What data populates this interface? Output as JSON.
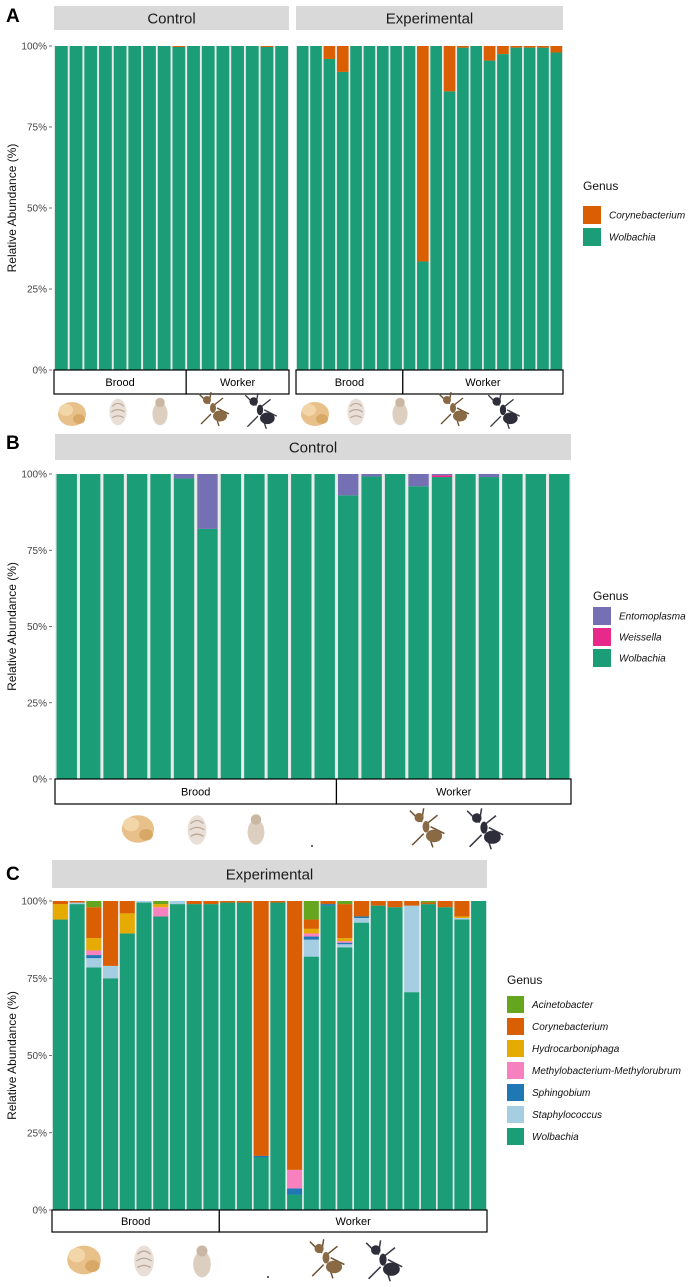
{
  "colors": {
    "Corynebacterium": "#D95F02",
    "Wolbachia": "#1B9E77",
    "Entomoplasma": "#7570B3",
    "Weissella": "#E7298A",
    "Acinetobacter": "#66A61E",
    "Hydrocarboniphaga": "#E6AB02",
    "Methylobacterium-Methylorubrum": "#F781BF",
    "Sphingobium": "#1F78B4",
    "Staphylococcus": "#A6CEE3"
  },
  "legend_title": "Genus",
  "chart_data": [
    {
      "panel": "A",
      "type": "bar",
      "stacked": true,
      "ylabel": "Relative Abundance (%)",
      "yticks": [
        "0%",
        "25%",
        "50%",
        "75%",
        "100%"
      ],
      "ylim": [
        0,
        100
      ],
      "legend": [
        "Corynebacterium",
        "Wolbachia"
      ],
      "facets": [
        {
          "title": "Control",
          "groups": [
            {
              "label": "Brood",
              "count": 9
            },
            {
              "label": "Worker",
              "count": 7
            }
          ],
          "bars": [
            {
              "Wolbachia": 100
            },
            {
              "Wolbachia": 100
            },
            {
              "Wolbachia": 100
            },
            {
              "Wolbachia": 100
            },
            {
              "Wolbachia": 100
            },
            {
              "Wolbachia": 100
            },
            {
              "Wolbachia": 100
            },
            {
              "Wolbachia": 100
            },
            {
              "Corynebacterium": 0.3,
              "Wolbachia": 99.7
            },
            {
              "Wolbachia": 100
            },
            {
              "Wolbachia": 100
            },
            {
              "Wolbachia": 100
            },
            {
              "Wolbachia": 100
            },
            {
              "Wolbachia": 100
            },
            {
              "Corynebacterium": 0.3,
              "Wolbachia": 99.7
            },
            {
              "Wolbachia": 100
            }
          ]
        },
        {
          "title": "Experimental",
          "groups": [
            {
              "label": "Brood",
              "count": 8
            },
            {
              "label": "Worker",
              "count": 12
            }
          ],
          "bars": [
            {
              "Wolbachia": 100
            },
            {
              "Wolbachia": 100
            },
            {
              "Corynebacterium": 4,
              "Wolbachia": 96
            },
            {
              "Corynebacterium": 8,
              "Wolbachia": 92
            },
            {
              "Wolbachia": 100
            },
            {
              "Wolbachia": 100
            },
            {
              "Wolbachia": 100
            },
            {
              "Wolbachia": 100
            },
            {
              "Wolbachia": 100
            },
            {
              "Corynebacterium": 66.5,
              "Wolbachia": 33.5
            },
            {
              "Wolbachia": 100
            },
            {
              "Corynebacterium": 14,
              "Wolbachia": 86
            },
            {
              "Corynebacterium": 0.5,
              "Wolbachia": 99.5
            },
            {
              "Wolbachia": 100
            },
            {
              "Corynebacterium": 4.5,
              "Wolbachia": 95.5
            },
            {
              "Corynebacterium": 2.5,
              "Wolbachia": 97.5
            },
            {
              "Corynebacterium": 0.5,
              "Wolbachia": 99.5
            },
            {
              "Corynebacterium": 0.5,
              "Wolbachia": 99.5
            },
            {
              "Corynebacterium": 0.5,
              "Wolbachia": 99.5
            },
            {
              "Corynebacterium": 2,
              "Wolbachia": 98
            }
          ]
        }
      ]
    },
    {
      "panel": "B",
      "type": "bar",
      "stacked": true,
      "ylabel": "Relative Abundance (%)",
      "yticks": [
        "0%",
        "25%",
        "50%",
        "75%",
        "100%"
      ],
      "ylim": [
        0,
        100
      ],
      "legend": [
        "Entomoplasma",
        "Weissella",
        "Wolbachia"
      ],
      "facets": [
        {
          "title": "Control",
          "groups": [
            {
              "label": "Brood",
              "count": 12
            },
            {
              "label": "Worker",
              "count": 10
            }
          ],
          "bars": [
            {
              "Wolbachia": 100
            },
            {
              "Wolbachia": 100
            },
            {
              "Wolbachia": 100
            },
            {
              "Wolbachia": 100
            },
            {
              "Wolbachia": 100
            },
            {
              "Entomoplasma": 1.5,
              "Wolbachia": 98.5
            },
            {
              "Entomoplasma": 18,
              "Wolbachia": 82
            },
            {
              "Wolbachia": 100
            },
            {
              "Wolbachia": 100
            },
            {
              "Wolbachia": 100
            },
            {
              "Wolbachia": 100
            },
            {
              "Wolbachia": 100
            },
            {
              "Entomoplasma": 7,
              "Wolbachia": 93
            },
            {
              "Entomoplasma": 0.8,
              "Wolbachia": 99.2
            },
            {
              "Wolbachia": 100
            },
            {
              "Entomoplasma": 4,
              "Wolbachia": 96
            },
            {
              "Weissella": 0.6,
              "Entomoplasma": 0.4,
              "Wolbachia": 99
            },
            {
              "Wolbachia": 100
            },
            {
              "Entomoplasma": 1,
              "Wolbachia": 99
            },
            {
              "Wolbachia": 100
            },
            {
              "Wolbachia": 100
            },
            {
              "Wolbachia": 100
            }
          ]
        }
      ]
    },
    {
      "panel": "C",
      "type": "bar",
      "stacked": true,
      "ylabel": "Relative Abundance (%)",
      "yticks": [
        "0%",
        "25%",
        "50%",
        "75%",
        "100%"
      ],
      "ylim": [
        0,
        100
      ],
      "legend": [
        "Acinetobacter",
        "Corynebacterium",
        "Hydrocarboniphaga",
        "Methylobacterium-Methylorubrum",
        "Sphingobium",
        "Staphylococcus",
        "Wolbachia"
      ],
      "facets": [
        {
          "title": "Experimental",
          "groups": [
            {
              "label": "Brood",
              "count": 10
            },
            {
              "label": "Worker",
              "count": 16
            }
          ],
          "bars": [
            {
              "Corynebacterium": 1,
              "Hydrocarboniphaga": 5,
              "Wolbachia": 94
            },
            {
              "Corynebacterium": 0.5,
              "Staphylococcus": 0.5,
              "Wolbachia": 99
            },
            {
              "Acinetobacter": 2,
              "Corynebacterium": 10,
              "Hydrocarboniphaga": 4,
              "Methylobacterium-Methylorubrum": 1.5,
              "Sphingobium": 1,
              "Staphylococcus": 3,
              "Wolbachia": 78.5
            },
            {
              "Corynebacterium": 21,
              "Staphylococcus": 4,
              "Wolbachia": 75
            },
            {
              "Corynebacterium": 4,
              "Hydrocarboniphaga": 6.5,
              "Wolbachia": 89.5
            },
            {
              "Staphylococcus": 0.5,
              "Wolbachia": 99.5
            },
            {
              "Acinetobacter": 1,
              "Hydrocarboniphaga": 1,
              "Methylobacterium-Methylorubrum": 3,
              "Wolbachia": 95
            },
            {
              "Staphylococcus": 1,
              "Wolbachia": 99
            },
            {
              "Corynebacterium": 1,
              "Wolbachia": 99
            },
            {
              "Corynebacterium": 1,
              "Wolbachia": 99
            },
            {
              "Corynebacterium": 0.5,
              "Wolbachia": 99.5
            },
            {
              "Corynebacterium": 0.5,
              "Wolbachia": 99.5
            },
            {
              "Corynebacterium": 82.5,
              "Sphingobium": 0.5,
              "Wolbachia": 17
            },
            {
              "Corynebacterium": 0.5,
              "Wolbachia": 99.5
            },
            {
              "Corynebacterium": 87,
              "Methylobacterium-Methylorubrum": 6,
              "Sphingobium": 2,
              "Wolbachia": 5
            },
            {
              "Acinetobacter": 6,
              "Corynebacterium": 3,
              "Hydrocarboniphaga": 1.5,
              "Methylobacterium-Methylorubrum": 1,
              "Sphingobium": 1,
              "Staphylococcus": 5.5,
              "Wolbachia": 82
            },
            {
              "Corynebacterium": 1,
              "Sphingobium": 0.5,
              "Wolbachia": 98.5
            },
            {
              "Acinetobacter": 1,
              "Corynebacterium": 11,
              "Hydrocarboniphaga": 1,
              "Methylobacterium-Methylorubrum": 0.5,
              "Sphingobium": 0.5,
              "Staphylococcus": 1,
              "Wolbachia": 85
            },
            {
              "Corynebacterium": 5,
              "Sphingobium": 0.5,
              "Staphylococcus": 1.5,
              "Wolbachia": 93
            },
            {
              "Corynebacterium": 1.5,
              "Wolbachia": 98.5
            },
            {
              "Corynebacterium": 2,
              "Wolbachia": 98
            },
            {
              "Corynebacterium": 1.5,
              "Staphylococcus": 28,
              "Wolbachia": 70.5
            },
            {
              "Acinetobacter": 0.5,
              "Corynebacterium": 0.5,
              "Wolbachia": 99
            },
            {
              "Corynebacterium": 2,
              "Wolbachia": 98
            },
            {
              "Corynebacterium": 5,
              "Hydrocarboniphaga": 0.5,
              "Staphylococcus": 0.5,
              "Wolbachia": 94
            },
            {
              "Wolbachia": 100
            }
          ]
        }
      ]
    }
  ]
}
